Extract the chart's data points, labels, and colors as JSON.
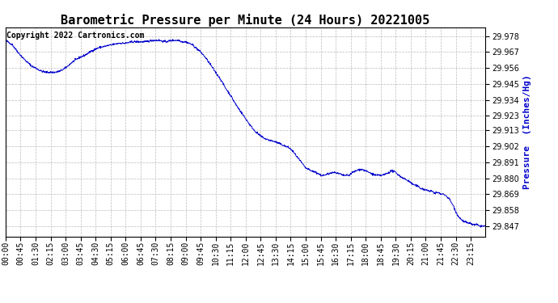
{
  "title": "Barometric Pressure per Minute (24 Hours) 20221005",
  "copyright_text": "Copyright 2022 Cartronics.com",
  "ylabel": "Pressure  (Inches/Hg)",
  "line_color": "#0000cc",
  "background_color": "#ffffff",
  "grid_color": "#bbbbbb",
  "title_color": "#000000",
  "copyright_color": "#000000",
  "ylabel_color": "#0000cc",
  "yticks": [
    29.847,
    29.858,
    29.869,
    29.88,
    29.891,
    29.902,
    29.913,
    29.923,
    29.934,
    29.945,
    29.956,
    29.967,
    29.978
  ],
  "ylim": [
    29.84,
    29.984
  ],
  "xtick_labels": [
    "00:00",
    "00:45",
    "01:30",
    "02:15",
    "03:00",
    "03:45",
    "04:30",
    "05:15",
    "06:00",
    "06:45",
    "07:30",
    "08:15",
    "09:00",
    "09:45",
    "10:30",
    "11:15",
    "12:00",
    "12:45",
    "13:30",
    "14:15",
    "15:00",
    "15:45",
    "16:30",
    "17:15",
    "18:00",
    "18:45",
    "19:30",
    "20:15",
    "21:00",
    "21:45",
    "22:30",
    "23:15"
  ],
  "title_fontsize": 11,
  "label_fontsize": 8,
  "tick_fontsize": 7,
  "copyright_fontsize": 7
}
